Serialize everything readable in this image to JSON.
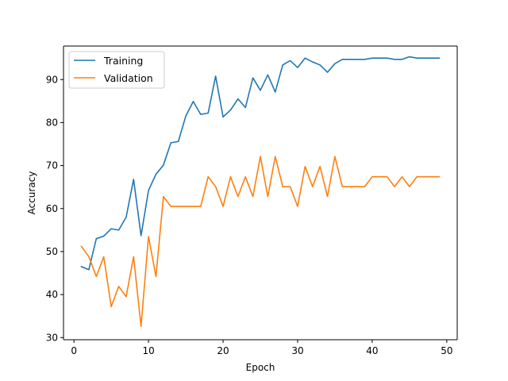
{
  "chart_data": {
    "type": "line",
    "xlabel": "Epoch",
    "ylabel": "Accuracy",
    "xlim": [
      -1.4,
      51.4
    ],
    "ylim": [
      29.5,
      97.8
    ],
    "xticks": [
      0,
      10,
      20,
      30,
      40,
      50
    ],
    "yticks": [
      30,
      40,
      50,
      60,
      70,
      80,
      90
    ],
    "grid": false,
    "legend_position": "top-left",
    "x": [
      1,
      2,
      3,
      4,
      5,
      6,
      7,
      8,
      9,
      10,
      11,
      12,
      13,
      14,
      15,
      16,
      17,
      18,
      19,
      20,
      21,
      22,
      23,
      24,
      25,
      26,
      27,
      28,
      29,
      30,
      31,
      32,
      33,
      34,
      35,
      36,
      37,
      38,
      39,
      40,
      41,
      42,
      43,
      44,
      45,
      46,
      47,
      48,
      49
    ],
    "series": [
      {
        "name": "Training",
        "color": "#1f77b4",
        "values": [
          46.5,
          45.8,
          53.0,
          53.6,
          55.3,
          55.0,
          58.0,
          66.8,
          53.7,
          64.2,
          68.0,
          70.1,
          75.3,
          75.6,
          81.5,
          84.9,
          81.9,
          82.2,
          90.8,
          81.3,
          82.9,
          85.5,
          83.5,
          90.4,
          87.5,
          91.1,
          87.1,
          93.4,
          94.4,
          92.8,
          95.0,
          94.1,
          93.4,
          91.7,
          93.7,
          94.7,
          94.7,
          94.7,
          94.7,
          95.0,
          95.0,
          95.0,
          94.7,
          94.7,
          95.3,
          95.0,
          95.0,
          95.0,
          95.0
        ]
      },
      {
        "name": "Validation",
        "color": "#ff7f0e",
        "values": [
          51.2,
          48.8,
          44.2,
          48.8,
          37.2,
          41.9,
          39.5,
          48.8,
          32.6,
          53.5,
          44.2,
          62.8,
          60.5,
          60.5,
          60.5,
          60.5,
          60.5,
          67.4,
          65.1,
          60.5,
          67.4,
          62.8,
          67.4,
          62.8,
          72.1,
          62.8,
          72.1,
          65.1,
          65.1,
          60.5,
          69.8,
          65.1,
          69.8,
          62.8,
          72.1,
          65.1,
          65.1,
          65.1,
          65.1,
          67.4,
          67.4,
          67.4,
          65.1,
          67.4,
          65.1,
          67.4,
          67.4,
          67.4,
          67.4
        ]
      }
    ]
  }
}
